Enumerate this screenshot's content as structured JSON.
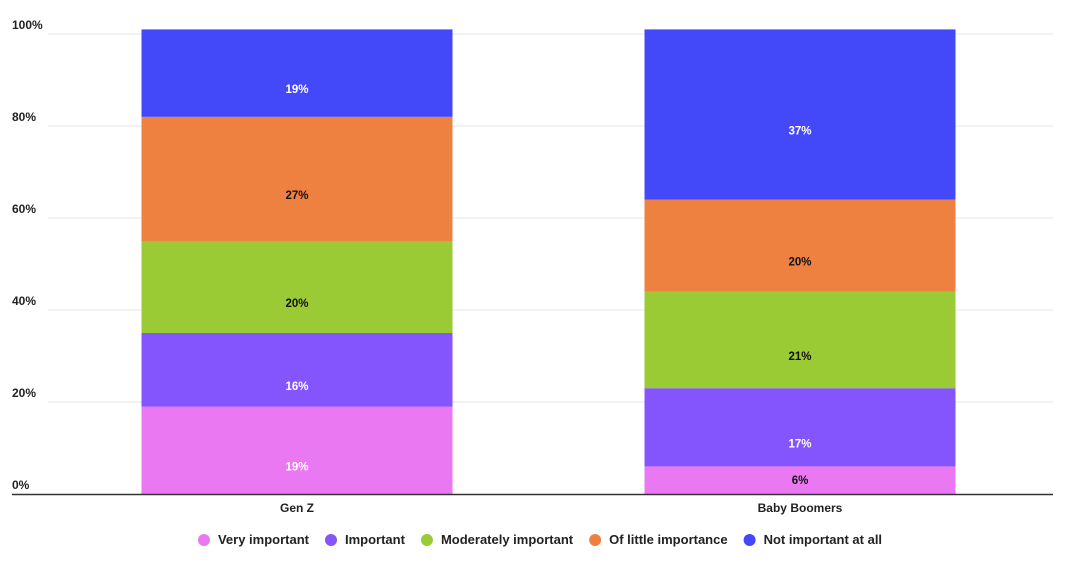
{
  "chart_data": {
    "type": "bar",
    "stacked": true,
    "categories": [
      "Gen Z",
      "Baby Boomers"
    ],
    "series": [
      {
        "name": "Very important",
        "values": [
          19,
          6
        ],
        "labels": [
          "19%",
          "6%"
        ],
        "color": "#EA78F2",
        "label_color": [
          "#ffffff",
          "#111111"
        ]
      },
      {
        "name": "Important",
        "values": [
          16,
          17
        ],
        "labels": [
          "16%",
          "17%"
        ],
        "color": "#8454FD",
        "label_color": [
          "#ffffff",
          "#ffffff"
        ]
      },
      {
        "name": "Moderately important",
        "values": [
          20,
          21
        ],
        "labels": [
          "20%",
          "21%"
        ],
        "color": "#9ACA34",
        "label_color": [
          "#111111",
          "#111111"
        ]
      },
      {
        "name": "Of little importance",
        "values": [
          27,
          20
        ],
        "labels": [
          "27%",
          "20%"
        ],
        "color": "#EE8140",
        "label_color": [
          "#111111",
          "#111111"
        ]
      },
      {
        "name": "Not important at all",
        "values": [
          19,
          37
        ],
        "labels": [
          "19%",
          "37%"
        ],
        "color": "#4349F8",
        "label_color": [
          "#ffffff",
          "#ffffff"
        ]
      }
    ],
    "yticks": [
      0,
      20,
      40,
      60,
      80,
      100
    ],
    "ytick_labels": [
      "0%",
      "20%",
      "40%",
      "60%",
      "80%",
      "100%"
    ],
    "ylim": [
      0,
      100
    ],
    "title": "",
    "xlabel": "",
    "ylabel": "",
    "legend_position": "bottom-center",
    "grid": true
  }
}
